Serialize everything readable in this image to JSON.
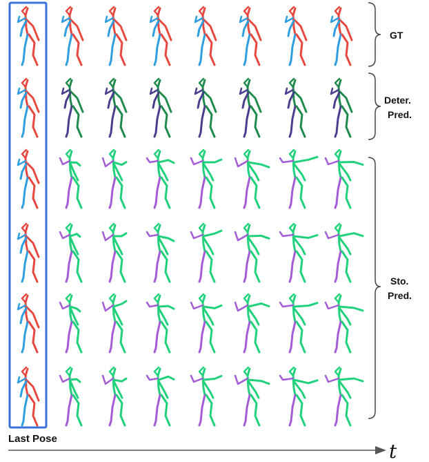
{
  "labels": {
    "gt": "GT",
    "deter_line1": "Deter.",
    "deter_line2": "Pred.",
    "sto_line1": "Sto.",
    "sto_line2": "Pred.",
    "last_pose": "Last Pose",
    "time_axis": "t"
  },
  "colors": {
    "gt_primary": "#e8473e",
    "gt_secondary": "#2d9ee0",
    "deter_primary": "#1e8a4c",
    "deter_secondary": "#4a3d8f",
    "sto_primary": "#1fd17a",
    "sto_secondary": "#a45bd6",
    "highlight_box": "#3a72d9",
    "brace": "#444444"
  },
  "grid": {
    "rows": 6,
    "columns": 8,
    "row_types": [
      "gt",
      "deter",
      "sto",
      "sto",
      "sto",
      "sto"
    ]
  }
}
